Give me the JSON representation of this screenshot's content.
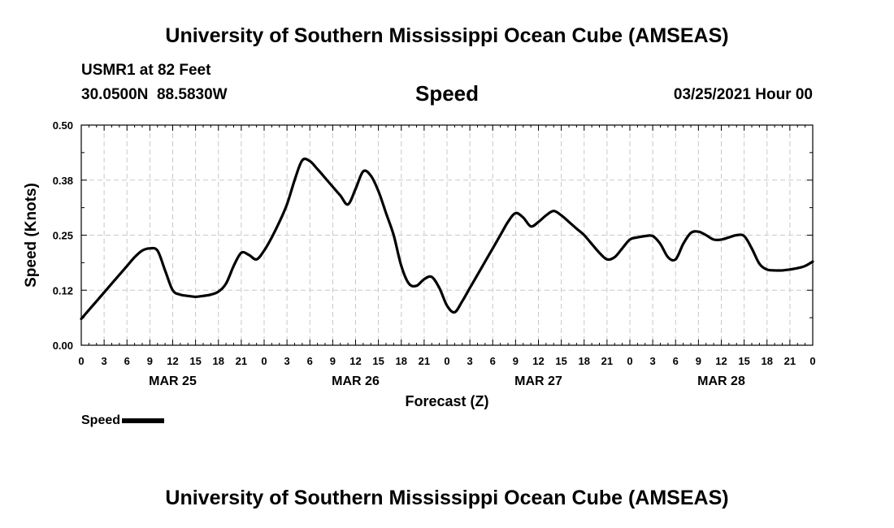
{
  "header": {
    "title_top": "University of Southern Mississippi Ocean Cube (AMSEAS)",
    "station": "USMR1 at 82 Feet",
    "coords": "30.0500N  88.5830W",
    "variable": "Speed",
    "datetime": "03/25/2021 Hour 00",
    "title_bottom": "University of Southern Mississippi Ocean Cube (AMSEAS)"
  },
  "legend": {
    "label": "Speed"
  },
  "chart_data": {
    "type": "line",
    "title": "Speed",
    "xlabel": "Forecast (Z)",
    "ylabel": "Speed (Knots)",
    "xlim": [
      0,
      96
    ],
    "ylim": [
      0,
      0.5
    ],
    "grid": true,
    "yticks": [
      0,
      0.125,
      0.25,
      0.375,
      0.5
    ],
    "ytick_labels": [
      "0.00",
      "0.12",
      "0.25",
      "0.38",
      "0.50"
    ],
    "xtick_hours": [
      0,
      3,
      6,
      9,
      12,
      15,
      18,
      21,
      24,
      27,
      30,
      33,
      36,
      39,
      42,
      45,
      48,
      51,
      54,
      57,
      60,
      63,
      66,
      69,
      72,
      75,
      78,
      81,
      84,
      87,
      90,
      93,
      96
    ],
    "xtick_labels": [
      "0",
      "3",
      "6",
      "9",
      "12",
      "15",
      "18",
      "21",
      "0",
      "3",
      "6",
      "9",
      "12",
      "15",
      "18",
      "21",
      "0",
      "3",
      "6",
      "9",
      "12",
      "15",
      "18",
      "21",
      "0",
      "3",
      "6",
      "9",
      "12",
      "15",
      "18",
      "21",
      "0"
    ],
    "day_labels": [
      {
        "hour": 12,
        "label": "MAR 25"
      },
      {
        "hour": 36,
        "label": "MAR 26"
      },
      {
        "hour": 60,
        "label": "MAR 27"
      },
      {
        "hour": 84,
        "label": "MAR 28"
      }
    ],
    "series": [
      {
        "name": "Speed",
        "color": "#000000",
        "x": [
          0,
          2,
          4,
          6,
          7,
          8,
          9,
          10,
          11,
          12,
          13,
          14,
          15,
          16,
          17,
          18,
          19,
          20,
          21,
          22,
          23,
          24,
          25,
          26,
          27,
          28,
          29,
          30,
          31,
          32,
          33,
          34,
          35,
          36,
          37,
          38,
          39,
          40,
          41,
          42,
          43,
          44,
          45,
          46,
          47,
          48,
          49,
          50,
          51,
          52,
          53,
          54,
          55,
          56,
          57,
          58,
          59,
          60,
          61,
          62,
          63,
          64,
          65,
          66,
          67,
          68,
          69,
          70,
          71,
          72,
          73,
          74,
          75,
          76,
          77,
          78,
          79,
          80,
          81,
          82,
          83,
          84,
          85,
          86,
          87,
          88,
          89,
          90,
          91,
          92,
          93,
          94,
          95,
          96
        ],
        "values": [
          0.06,
          0.1,
          0.14,
          0.18,
          0.2,
          0.215,
          0.22,
          0.215,
          0.17,
          0.125,
          0.115,
          0.112,
          0.11,
          0.112,
          0.115,
          0.122,
          0.14,
          0.18,
          0.21,
          0.205,
          0.195,
          0.215,
          0.245,
          0.28,
          0.32,
          0.375,
          0.42,
          0.418,
          0.4,
          0.38,
          0.36,
          0.34,
          0.32,
          0.355,
          0.395,
          0.385,
          0.35,
          0.3,
          0.25,
          0.18,
          0.14,
          0.135,
          0.15,
          0.155,
          0.13,
          0.09,
          0.075,
          0.1,
          0.13,
          0.16,
          0.19,
          0.22,
          0.25,
          0.28,
          0.3,
          0.29,
          0.27,
          0.28,
          0.295,
          0.305,
          0.295,
          0.28,
          0.265,
          0.25,
          0.23,
          0.21,
          0.195,
          0.2,
          0.22,
          0.24,
          0.245,
          0.248,
          0.248,
          0.23,
          0.2,
          0.195,
          0.23,
          0.255,
          0.258,
          0.25,
          0.24,
          0.24,
          0.245,
          0.25,
          0.248,
          0.22,
          0.185,
          0.172,
          0.17,
          0.17,
          0.172,
          0.175,
          0.18,
          0.19
        ]
      }
    ]
  }
}
